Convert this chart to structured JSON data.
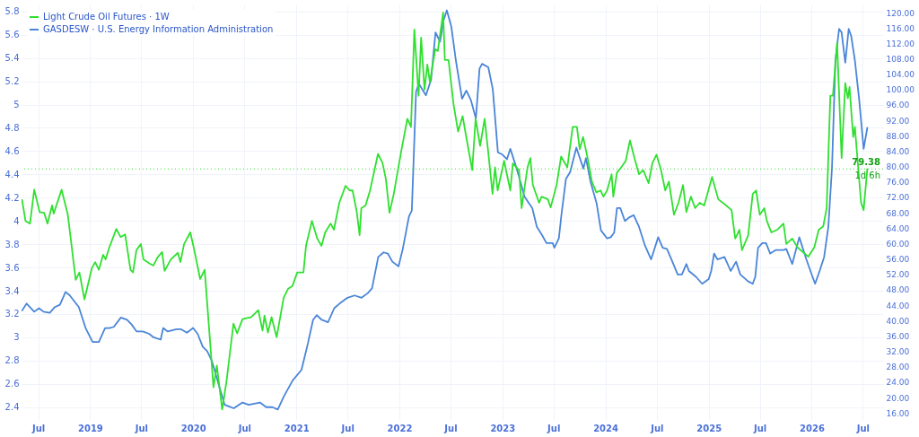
{
  "chart_data": {
    "type": "line",
    "xlim": [
      "2018-05-03",
      "2026-09-11"
    ],
    "xticks": [
      {
        "value": "2018-07-01",
        "label": "Jul"
      },
      {
        "value": "2019-01-01",
        "label": "2019"
      },
      {
        "value": "2019-07-01",
        "label": "Jul"
      },
      {
        "value": "2020-01-01",
        "label": "2020"
      },
      {
        "value": "2020-07-01",
        "label": "Jul"
      },
      {
        "value": "2021-01-01",
        "label": "2021"
      },
      {
        "value": "2021-07-01",
        "label": "Jul"
      },
      {
        "value": "2022-01-01",
        "label": "2022"
      },
      {
        "value": "2022-07-01",
        "label": "Jul"
      },
      {
        "value": "2023-01-01",
        "label": "2023"
      },
      {
        "value": "2023-07-01",
        "label": "Jul"
      },
      {
        "value": "2024-01-01",
        "label": "2024"
      },
      {
        "value": "2024-07-01",
        "label": "Jul"
      },
      {
        "value": "2025-01-01",
        "label": "2025"
      },
      {
        "value": "2025-07-01",
        "label": "Jul"
      },
      {
        "value": "2026-01-01",
        "label": "2026"
      },
      {
        "value": "2026-07-01",
        "label": "Jul"
      }
    ],
    "ylim": [
      2.29,
      5.86
    ],
    "yticks": [
      2.4,
      2.6,
      2.8,
      3,
      3.2,
      3.4,
      3.6,
      3.8,
      4,
      4.2,
      4.4,
      4.6,
      4.8,
      5,
      5.2,
      5.4,
      5.6,
      5.8
    ],
    "y2lim": [
      14.2,
      122.1
    ],
    "y2ticks": [
      {
        "value": 16,
        "label": "16.00"
      },
      {
        "value": 20,
        "label": "20.00"
      },
      {
        "value": 24,
        "label": "24.00"
      },
      {
        "value": 28,
        "label": "28.00"
      },
      {
        "value": 32,
        "label": "32.00"
      },
      {
        "value": 36,
        "label": "36.00"
      },
      {
        "value": 40,
        "label": "40.00"
      },
      {
        "value": 44,
        "label": "44.00"
      },
      {
        "value": 48,
        "label": "48.00"
      },
      {
        "value": 52,
        "label": "52.00"
      },
      {
        "value": 56,
        "label": "56.00"
      },
      {
        "value": 60,
        "label": "60.00"
      },
      {
        "value": 64,
        "label": "64.00"
      },
      {
        "value": 68,
        "label": "68.00"
      },
      {
        "value": 72,
        "label": "72.00"
      },
      {
        "value": 76,
        "label": "76.00"
      },
      {
        "value": 80,
        "label": "80.00"
      },
      {
        "value": 84,
        "label": "84.00"
      },
      {
        "value": 88,
        "label": "88.00"
      },
      {
        "value": 92,
        "label": "92.00"
      },
      {
        "value": 96,
        "label": "96.00"
      },
      {
        "value": 100,
        "label": "100.00"
      },
      {
        "value": 104,
        "label": "104.00"
      },
      {
        "value": 108,
        "label": "108.00"
      },
      {
        "value": 112,
        "label": "112.00"
      },
      {
        "value": 116,
        "label": "116.00"
      },
      {
        "value": 120,
        "label": "120.00"
      }
    ],
    "grid": true,
    "legend": "top left",
    "ref_lines": [
      {
        "axis": "y2",
        "value": 79.38,
        "label": "79.38",
        "color": "#2fe02f",
        "line_style": "dotted"
      }
    ],
    "annotations": [
      "1d 6h"
    ],
    "series": [
      {
        "name": "Light Crude Oil Futures · 1W",
        "color": "#2fe02f",
        "axis": "y2",
        "x": [
          "2018-05-05",
          "2018-05-17",
          "2018-06-02",
          "2018-06-17",
          "2018-07-06",
          "2018-07-22",
          "2018-08-03",
          "2018-08-19",
          "2018-08-25",
          "2018-09-22",
          "2018-10-14",
          "2018-11-11",
          "2018-11-24",
          "2018-12-12",
          "2019-01-07",
          "2019-01-19",
          "2019-02-01",
          "2019-02-16",
          "2019-02-25",
          "2019-03-10",
          "2019-04-04",
          "2019-04-19",
          "2019-05-05",
          "2019-05-24",
          "2019-06-02",
          "2019-06-14",
          "2019-06-30",
          "2019-07-09",
          "2019-07-31",
          "2019-08-13",
          "2019-08-28",
          "2019-09-13",
          "2019-09-22",
          "2019-10-14",
          "2019-11-08",
          "2019-11-17",
          "2019-11-30",
          "2019-12-22",
          "2020-01-04",
          "2020-01-26",
          "2020-02-11",
          "2020-03-03",
          "2020-03-13",
          "2020-03-25",
          "2020-04-13",
          "2020-04-28",
          "2020-05-23",
          "2020-06-05",
          "2020-06-24",
          "2020-07-25",
          "2020-08-19",
          "2020-09-03",
          "2020-09-10",
          "2020-09-22",
          "2020-10-05",
          "2020-10-23",
          "2020-11-17",
          "2020-12-03",
          "2020-12-18",
          "2021-01-04",
          "2021-01-26",
          "2021-02-04",
          "2021-02-25",
          "2021-03-16",
          "2021-03-31",
          "2021-04-13",
          "2021-05-02",
          "2021-05-14",
          "2021-06-02",
          "2021-06-24",
          "2021-07-09",
          "2021-07-19",
          "2021-08-03",
          "2021-08-13",
          "2021-08-19",
          "2021-09-03",
          "2021-09-19",
          "2021-10-17",
          "2021-11-02",
          "2021-11-14",
          "2021-11-27",
          "2021-12-12",
          "2022-01-07",
          "2022-01-29",
          "2022-02-11",
          "2022-02-23",
          "2022-03-10",
          "2022-03-19",
          "2022-03-31",
          "2022-04-10",
          "2022-04-19",
          "2022-05-08",
          "2022-05-17",
          "2022-06-05",
          "2022-06-11",
          "2022-06-24",
          "2022-07-12",
          "2022-07-28",
          "2022-08-13",
          "2022-08-28",
          "2022-09-16",
          "2022-09-28",
          "2022-10-14",
          "2022-10-30",
          "2022-11-14",
          "2022-11-27",
          "2022-12-06",
          "2022-12-15",
          "2023-01-07",
          "2023-01-29",
          "2023-02-07",
          "2023-03-01",
          "2023-03-10",
          "2023-03-19",
          "2023-03-31",
          "2023-04-10",
          "2023-04-19",
          "2023-05-11",
          "2023-05-20",
          "2023-06-11",
          "2023-06-21",
          "2023-07-12",
          "2023-07-28",
          "2023-08-19",
          "2023-09-07",
          "2023-09-22",
          "2023-10-02",
          "2023-10-14",
          "2023-10-30",
          "2023-11-14",
          "2023-11-30",
          "2023-12-15",
          "2023-12-25",
          "2024-01-07",
          "2024-01-23",
          "2024-01-29",
          "2024-02-11",
          "2024-02-26",
          "2024-03-13",
          "2024-03-28",
          "2024-04-13",
          "2024-04-29",
          "2024-05-14",
          "2024-06-02",
          "2024-06-15",
          "2024-06-30",
          "2024-07-16",
          "2024-07-31",
          "2024-08-13",
          "2024-08-31",
          "2024-09-16",
          "2024-10-02",
          "2024-10-14",
          "2024-10-30",
          "2024-11-14",
          "2024-11-30",
          "2024-12-16",
          "2025-01-13",
          "2025-02-04",
          "2025-03-04",
          "2025-03-23",
          "2025-04-05",
          "2025-04-20",
          "2025-04-29",
          "2025-05-21",
          "2025-06-06",
          "2025-06-18",
          "2025-07-01",
          "2025-07-17",
          "2025-07-26",
          "2025-08-11",
          "2025-09-01",
          "2025-09-23",
          "2025-10-03",
          "2025-10-24",
          "2025-11-12",
          "2025-12-04",
          "2025-12-20",
          "2026-01-10",
          "2026-01-26",
          "2026-02-11",
          "2026-02-23",
          "2026-03-08",
          "2026-03-17",
          "2026-04-01",
          "2026-04-17",
          "2026-04-30",
          "2026-05-09",
          "2026-05-15",
          "2026-05-28",
          "2026-06-03",
          "2026-06-25",
          "2026-07-04",
          "2026-07-17"
        ],
        "values": [
          71.3,
          65.9,
          65.2,
          74.0,
          68.2,
          68.0,
          65.2,
          69.9,
          67.8,
          74.0,
          67.5,
          50.6,
          52.5,
          45.5,
          53.6,
          55.2,
          53.2,
          57.1,
          55.9,
          59.0,
          63.8,
          61.7,
          62.4,
          53.2,
          52.5,
          58.3,
          59.9,
          55.9,
          54.8,
          54.3,
          56.4,
          57.8,
          52.9,
          55.9,
          57.6,
          55.2,
          59.9,
          62.9,
          58.7,
          50.8,
          53.2,
          32.7,
          22.7,
          28.3,
          16.9,
          24.1,
          39.2,
          36.7,
          40.4,
          40.9,
          42.7,
          37.4,
          41.3,
          36.9,
          40.9,
          35.7,
          46.0,
          48.3,
          49.0,
          52.5,
          52.5,
          59.4,
          65.9,
          61.3,
          59.4,
          62.9,
          65.2,
          63.6,
          70.6,
          75.0,
          73.8,
          73.8,
          68.2,
          62.2,
          69.2,
          69.9,
          73.8,
          83.3,
          81.0,
          76.8,
          68.0,
          72.9,
          83.8,
          92.4,
          90.3,
          115.6,
          98.4,
          113.5,
          100.0,
          106.5,
          101.9,
          110.5,
          110.0,
          120.0,
          107.7,
          107.7,
          96.1,
          89.1,
          93.1,
          86.8,
          79.1,
          92.4,
          85.4,
          92.4,
          82.2,
          72.9,
          79.8,
          73.8,
          81.5,
          73.8,
          80.8,
          79.1,
          69.2,
          73.8,
          79.8,
          82.2,
          75.2,
          70.6,
          72.2,
          71.5,
          69.4,
          75.2,
          82.6,
          79.8,
          90.3,
          90.3,
          84.5,
          87.7,
          82.2,
          76.1,
          73.3,
          73.8,
          72.2,
          73.8,
          78.0,
          72.2,
          78.5,
          79.8,
          81.5,
          86.8,
          82.2,
          78.0,
          79.1,
          75.7,
          80.8,
          83.1,
          79.1,
          73.8,
          76.1,
          67.5,
          70.6,
          75.2,
          68.2,
          72.2,
          69.2,
          70.6,
          69.9,
          77.3,
          71.5,
          69.9,
          68.7,
          61.3,
          63.6,
          58.3,
          62.2,
          72.9,
          73.8,
          67.5,
          69.2,
          65.9,
          62.9,
          63.6,
          65.2,
          59.9,
          61.3,
          59.0,
          57.6,
          56.6,
          59.0,
          63.6,
          64.5,
          69.2,
          98.4,
          98.4,
          112.1,
          82.2,
          101.7,
          97.7,
          100.7,
          87.7,
          90.3,
          70.6,
          68.7,
          79.38
        ]
      },
      {
        "name": "GASDESW · U.S. Energy Information Administration",
        "color": "#4a85d8",
        "axis": "y",
        "x": [
          "2018-05-05",
          "2018-05-21",
          "2018-06-17",
          "2018-07-04",
          "2018-07-20",
          "2018-08-11",
          "2018-08-29",
          "2018-09-16",
          "2018-10-06",
          "2018-10-21",
          "2018-11-22",
          "2018-12-16",
          "2019-01-10",
          "2019-02-01",
          "2019-02-23",
          "2019-03-11",
          "2019-03-26",
          "2019-04-20",
          "2019-05-12",
          "2019-05-28",
          "2019-06-15",
          "2019-07-07",
          "2019-07-29",
          "2019-08-14",
          "2019-09-08",
          "2019-09-17",
          "2019-10-03",
          "2019-11-03",
          "2019-11-18",
          "2019-12-10",
          "2020-01-01",
          "2020-01-17",
          "2020-02-04",
          "2020-02-20",
          "2020-03-07",
          "2020-04-07",
          "2020-04-22",
          "2020-05-24",
          "2020-06-24",
          "2020-07-16",
          "2020-08-25",
          "2020-09-16",
          "2020-10-08",
          "2020-10-27",
          "2020-11-17",
          "2020-12-19",
          "2021-01-19",
          "2021-02-11",
          "2021-03-01",
          "2021-03-14",
          "2021-04-01",
          "2021-04-23",
          "2021-05-15",
          "2021-06-03",
          "2021-07-01",
          "2021-07-26",
          "2021-08-20",
          "2021-09-11",
          "2021-09-26",
          "2021-10-18",
          "2021-11-06",
          "2021-11-21",
          "2021-12-07",
          "2021-12-29",
          "2022-01-13",
          "2022-02-04",
          "2022-02-14",
          "2022-03-01",
          "2022-03-11",
          "2022-04-05",
          "2022-04-23",
          "2022-05-09",
          "2022-05-25",
          "2022-06-06",
          "2022-06-18",
          "2022-07-04",
          "2022-07-20",
          "2022-08-11",
          "2022-08-26",
          "2022-09-11",
          "2022-09-29",
          "2022-10-12",
          "2022-10-21",
          "2022-11-12",
          "2022-11-28",
          "2022-12-16",
          "2023-01-01",
          "2023-01-17",
          "2023-01-29",
          "2023-02-14",
          "2023-03-01",
          "2023-03-20",
          "2023-04-17",
          "2023-05-03",
          "2023-05-21",
          "2023-06-06",
          "2023-06-28",
          "2023-07-04",
          "2023-07-20",
          "2023-07-29",
          "2023-08-14",
          "2023-08-29",
          "2023-09-20",
          "2023-10-15",
          "2023-10-24",
          "2023-11-09",
          "2023-12-01",
          "2023-12-16",
          "2024-01-07",
          "2024-01-20",
          "2024-02-01",
          "2024-02-11",
          "2024-02-23",
          "2024-03-10",
          "2024-03-25",
          "2024-04-10",
          "2024-04-29",
          "2024-05-20",
          "2024-06-11",
          "2024-07-06",
          "2024-07-22",
          "2024-08-06",
          "2024-08-22",
          "2024-09-13",
          "2024-09-28",
          "2024-10-14",
          "2024-10-23",
          "2024-11-17",
          "2024-12-09",
          "2025-01-01",
          "2025-01-10",
          "2025-01-20",
          "2025-02-01",
          "2025-02-26",
          "2025-03-20",
          "2025-04-08",
          "2025-04-23",
          "2025-05-21",
          "2025-06-06",
          "2025-06-15",
          "2025-06-25",
          "2025-07-10",
          "2025-07-23",
          "2025-08-07",
          "2025-08-26",
          "2025-09-23",
          "2025-10-03",
          "2025-10-24",
          "2025-11-18",
          "2025-12-13",
          "2026-01-04",
          "2026-01-13",
          "2026-01-29",
          "2026-02-14",
          "2026-03-01",
          "2026-03-14",
          "2026-03-26",
          "2026-04-08",
          "2026-04-17",
          "2026-04-30",
          "2026-05-12",
          "2026-05-21",
          "2026-06-03",
          "2026-06-18",
          "2026-07-04",
          "2026-07-17"
        ],
        "values": [
          3.23,
          3.29,
          3.22,
          3.25,
          3.22,
          3.21,
          3.26,
          3.28,
          3.39,
          3.36,
          3.26,
          3.08,
          2.96,
          2.96,
          3.08,
          3.08,
          3.09,
          3.17,
          3.15,
          3.11,
          3.05,
          3.05,
          3.03,
          3.0,
          2.98,
          3.08,
          3.05,
          3.07,
          3.07,
          3.04,
          3.08,
          3.03,
          2.92,
          2.88,
          2.8,
          2.54,
          2.42,
          2.39,
          2.44,
          2.42,
          2.44,
          2.4,
          2.4,
          2.38,
          2.49,
          2.63,
          2.72,
          2.95,
          3.15,
          3.19,
          3.15,
          3.13,
          3.25,
          3.29,
          3.34,
          3.36,
          3.34,
          3.38,
          3.42,
          3.69,
          3.73,
          3.72,
          3.65,
          3.61,
          3.76,
          4.04,
          4.09,
          5.11,
          5.18,
          5.08,
          5.21,
          5.62,
          5.54,
          5.72,
          5.81,
          5.67,
          5.38,
          5.05,
          5.12,
          5.04,
          4.88,
          5.31,
          5.35,
          5.32,
          5.13,
          4.59,
          4.57,
          4.53,
          4.62,
          4.5,
          4.38,
          4.21,
          4.11,
          3.95,
          3.88,
          3.81,
          3.81,
          3.77,
          3.85,
          4.05,
          4.36,
          4.42,
          4.63,
          4.45,
          4.54,
          4.34,
          4.15,
          3.92,
          3.85,
          3.86,
          3.9,
          4.11,
          4.11,
          4.0,
          4.03,
          4.05,
          3.95,
          3.79,
          3.67,
          3.86,
          3.77,
          3.76,
          3.67,
          3.54,
          3.54,
          3.63,
          3.57,
          3.52,
          3.46,
          3.5,
          3.57,
          3.72,
          3.67,
          3.69,
          3.57,
          3.65,
          3.54,
          3.48,
          3.46,
          3.52,
          3.77,
          3.81,
          3.81,
          3.72,
          3.75,
          3.75,
          3.76,
          3.63,
          3.86,
          3.67,
          3.52,
          3.46,
          3.57,
          3.69,
          3.95,
          4.46,
          5.38,
          5.65,
          5.62,
          5.36,
          5.65,
          5.59,
          5.38,
          5.05,
          4.62,
          4.8
        ]
      }
    ]
  }
}
